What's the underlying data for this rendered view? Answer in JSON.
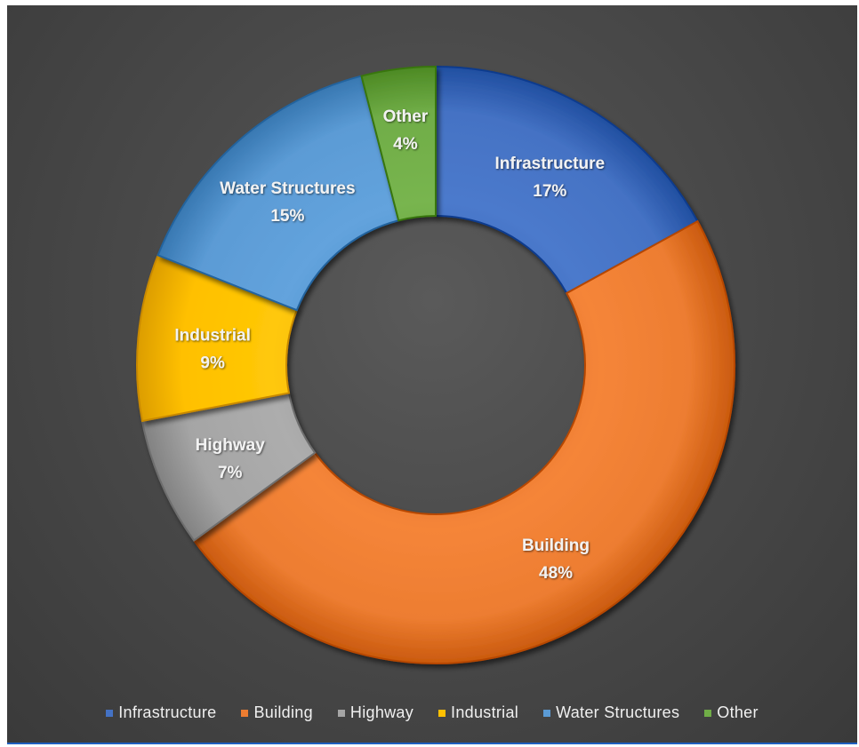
{
  "chart_data": {
    "type": "pie",
    "variant": "donut",
    "title": "",
    "legend_placement": "bottom",
    "slices": [
      {
        "label": "Infrastructure",
        "value": 17,
        "pct_label": "17%",
        "color": "#4472c4"
      },
      {
        "label": "Building",
        "value": 48,
        "pct_label": "48%",
        "color": "#ed7d31"
      },
      {
        "label": "Highway",
        "value": 7,
        "pct_label": "7%",
        "color": "#a5a5a5"
      },
      {
        "label": "Industrial",
        "value": 9,
        "pct_label": "9%",
        "color": "#ffc000"
      },
      {
        "label": "Water Structures",
        "value": 15,
        "pct_label": "15%",
        "color": "#5b9bd5"
      },
      {
        "label": "Other",
        "value": 4,
        "pct_label": "4%",
        "color": "#70ad47"
      }
    ],
    "background_color": "#4d4d4d",
    "label_color": "#f2f2f2"
  }
}
